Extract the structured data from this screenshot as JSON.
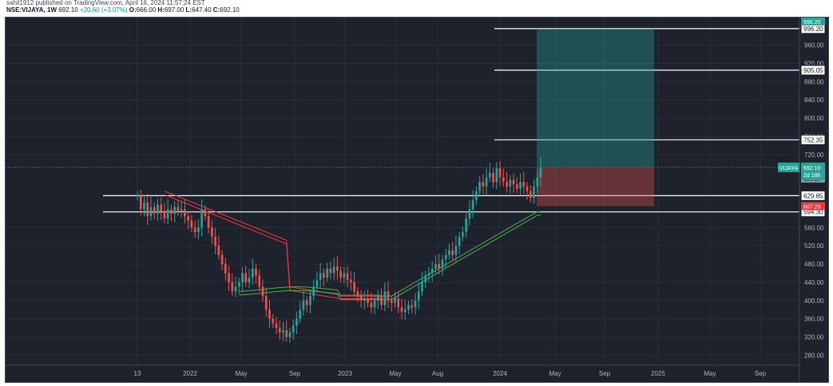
{
  "header": {
    "publisher_line": "sahil1912 published on TradingView.com, April 16, 2024 11:57:24 EST",
    "symbol": "NSE:VIJAYA, 1W",
    "last": "692.10",
    "change": "+20.60 (+3.07%)",
    "open_label": "O:",
    "open": "666.00",
    "high_label": "H:",
    "high": "697.00",
    "low_label": "L:",
    "low": "647.40",
    "close_label": "C:",
    "close": "692.10"
  },
  "chart_data": {
    "type": "candlestick",
    "currency": "INR",
    "x_ticks": [
      "13",
      "2022",
      "May",
      "Sep",
      "2023",
      "May",
      "Aug",
      "2024",
      "May",
      "Sep",
      "2025",
      "May",
      "Sep"
    ],
    "y_ticks": [
      280,
      320,
      360,
      400,
      440,
      480,
      520,
      560,
      720,
      760,
      800,
      840,
      880,
      920,
      960
    ],
    "ylim": [
      265,
      1010
    ],
    "price_labels": [
      {
        "label": "996.20",
        "type": "horizontal-line"
      },
      {
        "label": "905.05",
        "type": "horizontal-line"
      },
      {
        "label": "752.35",
        "type": "horizontal-line"
      },
      {
        "label": "629.85",
        "type": "horizontal-line"
      },
      {
        "label": "594.30",
        "type": "horizontal-line"
      },
      {
        "label": "691.95",
        "type": "position-entry"
      },
      {
        "label": "607.20",
        "type": "position-stop"
      },
      {
        "label": "996.20",
        "type": "position-target"
      }
    ],
    "symbol_tag": {
      "name": "VIJAYA",
      "price": "692.10",
      "countdown": "2d 18h"
    },
    "position": {
      "side": "long",
      "entry": 691.95,
      "stop": 607.2,
      "target": 996.2
    },
    "price_path": [
      [
        0,
        630
      ],
      [
        1,
        600
      ],
      [
        2,
        615
      ],
      [
        3,
        585
      ],
      [
        4,
        605
      ],
      [
        5,
        590
      ],
      [
        6,
        610
      ],
      [
        7,
        595
      ],
      [
        8,
        580
      ],
      [
        9,
        600
      ],
      [
        10,
        590
      ],
      [
        11,
        605
      ],
      [
        12,
        595
      ],
      [
        13,
        600
      ],
      [
        14,
        585
      ],
      [
        15,
        575
      ],
      [
        16,
        560
      ],
      [
        17,
        550
      ],
      [
        18,
        560
      ],
      [
        19,
        600
      ],
      [
        20,
        585
      ],
      [
        21,
        560
      ],
      [
        22,
        540
      ],
      [
        23,
        520
      ],
      [
        24,
        500
      ],
      [
        25,
        480
      ],
      [
        26,
        460
      ],
      [
        27,
        440
      ],
      [
        28,
        420
      ],
      [
        29,
        430
      ],
      [
        30,
        440
      ],
      [
        31,
        460
      ],
      [
        32,
        440
      ],
      [
        33,
        450
      ],
      [
        34,
        470
      ],
      [
        35,
        455
      ],
      [
        36,
        430
      ],
      [
        37,
        410
      ],
      [
        38,
        380
      ],
      [
        39,
        360
      ],
      [
        40,
        350
      ],
      [
        41,
        340
      ],
      [
        42,
        330
      ],
      [
        43,
        335
      ],
      [
        44,
        320
      ],
      [
        45,
        330
      ],
      [
        46,
        345
      ],
      [
        47,
        360
      ],
      [
        48,
        380
      ],
      [
        49,
        400
      ],
      [
        50,
        390
      ],
      [
        51,
        410
      ],
      [
        52,
        430
      ],
      [
        53,
        445
      ],
      [
        54,
        460
      ],
      [
        55,
        450
      ],
      [
        56,
        470
      ],
      [
        57,
        460
      ],
      [
        58,
        475
      ],
      [
        59,
        465
      ],
      [
        60,
        450
      ],
      [
        61,
        460
      ],
      [
        62,
        445
      ],
      [
        63,
        440
      ],
      [
        64,
        420
      ],
      [
        65,
        410
      ],
      [
        66,
        400
      ],
      [
        67,
        405
      ],
      [
        68,
        395
      ],
      [
        69,
        385
      ],
      [
        70,
        400
      ],
      [
        71,
        410
      ],
      [
        72,
        390
      ],
      [
        73,
        420
      ],
      [
        74,
        400
      ],
      [
        75,
        395
      ],
      [
        76,
        405
      ],
      [
        77,
        385
      ],
      [
        78,
        375
      ],
      [
        79,
        380
      ],
      [
        80,
        390
      ],
      [
        81,
        385
      ],
      [
        82,
        400
      ],
      [
        83,
        420
      ],
      [
        84,
        440
      ],
      [
        85,
        455
      ],
      [
        86,
        460
      ],
      [
        87,
        470
      ],
      [
        88,
        480
      ],
      [
        89,
        470
      ],
      [
        90,
        490
      ],
      [
        91,
        500
      ],
      [
        92,
        510
      ],
      [
        93,
        500
      ],
      [
        94,
        520
      ],
      [
        95,
        540
      ],
      [
        96,
        550
      ],
      [
        97,
        580
      ],
      [
        98,
        600
      ],
      [
        99,
        620
      ],
      [
        100,
        640
      ],
      [
        101,
        660
      ],
      [
        102,
        650
      ],
      [
        103,
        670
      ],
      [
        104,
        680
      ],
      [
        105,
        660
      ],
      [
        106,
        690
      ],
      [
        107,
        670
      ],
      [
        108,
        660
      ],
      [
        109,
        650
      ],
      [
        110,
        665
      ],
      [
        111,
        655
      ],
      [
        112,
        645
      ],
      [
        113,
        660
      ],
      [
        114,
        650
      ],
      [
        115,
        640
      ],
      [
        116,
        625
      ],
      [
        117,
        650
      ],
      [
        118,
        670
      ],
      [
        119,
        692
      ]
    ],
    "ma_band_bearish_start": 620,
    "ma_band_bullish_end": 595
  }
}
